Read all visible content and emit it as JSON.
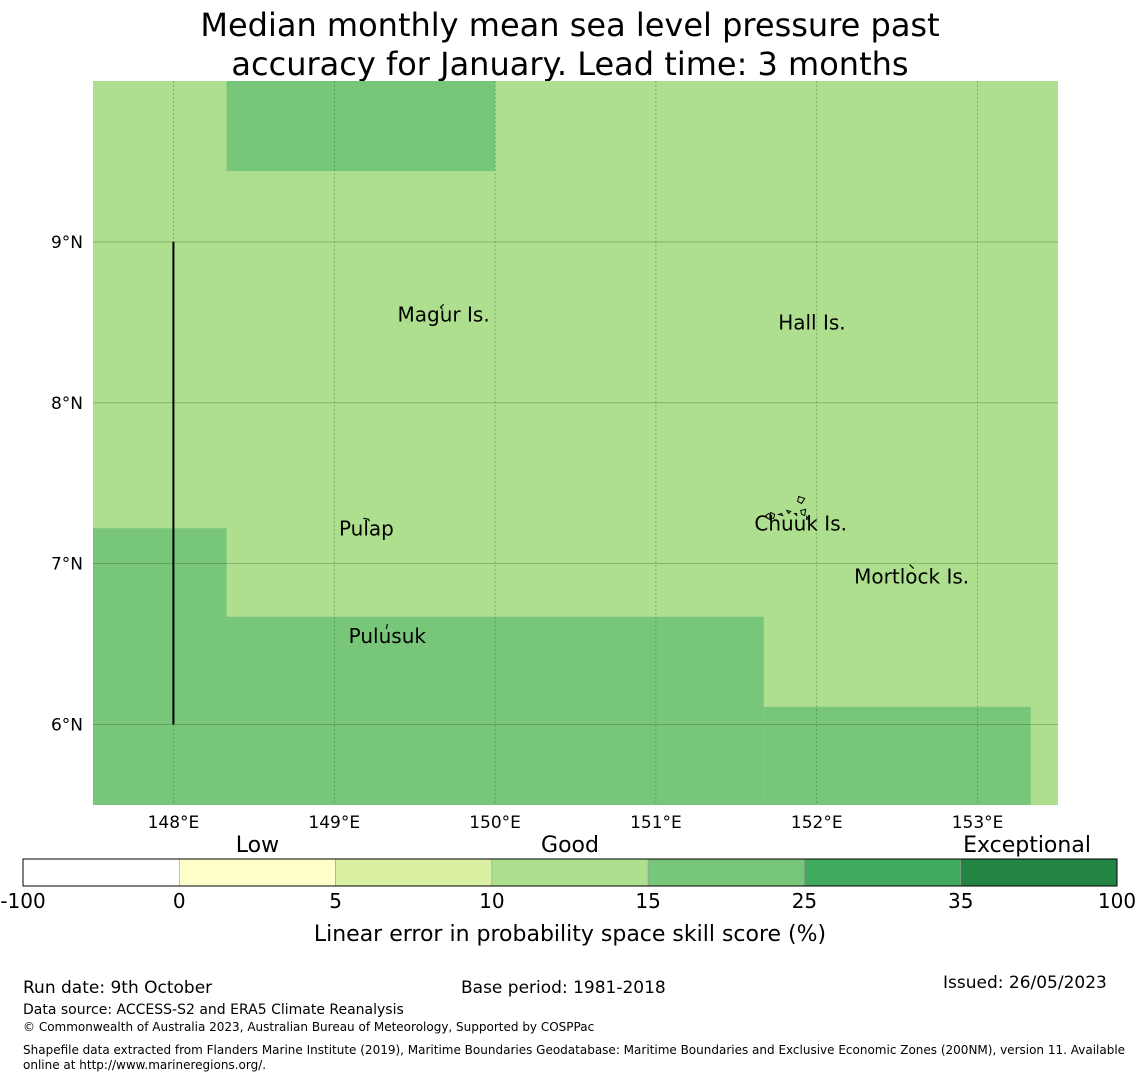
{
  "title": {
    "line1": "Median monthly mean sea level pressure past",
    "line2": "accuracy for January. Lead time: 3 months"
  },
  "map": {
    "lat_labels": [
      "9°N",
      "8°N",
      "7°N",
      "6°N"
    ],
    "lat_values": [
      9,
      8,
      7,
      6
    ],
    "lon_labels": [
      "148°E",
      "149°E",
      "150°E",
      "151°E",
      "152°E",
      "153°E"
    ],
    "lon_values": [
      148,
      149,
      150,
      151,
      152,
      153
    ],
    "extent": {
      "lon_min": 147.5,
      "lon_max": 153.5,
      "lat_min": 5.5,
      "lat_max": 10.0
    },
    "base_color": "#addf8e",
    "cells": [
      {
        "lon0": 148.33,
        "lon1": 150.0,
        "lat0": 9.44,
        "lat1": 10.0,
        "color": "#78c679",
        "category": "15-25"
      },
      {
        "lon0": 147.5,
        "lon1": 148.33,
        "lat0": 5.5,
        "lat1": 7.22,
        "color": "#78c679",
        "category": "15-25"
      },
      {
        "lon0": 148.33,
        "lon1": 151.67,
        "lat0": 5.5,
        "lat1": 6.67,
        "color": "#78c679",
        "category": "15-25"
      },
      {
        "lon0": 151.67,
        "lon1": 153.33,
        "lat0": 5.5,
        "lat1": 6.11,
        "color": "#78c679",
        "category": "15-25"
      }
    ],
    "boundary_line": {
      "lon": 148.0,
      "lat0": 6.0,
      "lat1": 9.0
    },
    "islands": [
      {
        "name": "Magur Is.",
        "lon": 149.68,
        "lat": 8.55
      },
      {
        "name": "Hall Is.",
        "lon": 151.97,
        "lat": 8.5
      },
      {
        "name": "Pulap",
        "lon": 149.2,
        "lat": 7.22
      },
      {
        "name": "Chuuk Is.",
        "lon": 151.9,
        "lat": 7.25
      },
      {
        "name": "Mortlock Is.",
        "lon": 152.59,
        "lat": 6.92
      },
      {
        "name": "Pulusuk",
        "lon": 149.33,
        "lat": 6.55
      }
    ]
  },
  "legend": {
    "category_labels": [
      "Low",
      "Good",
      "Exceptional"
    ],
    "ticks": [
      "-100",
      "0",
      "5",
      "10",
      "15",
      "25",
      "35",
      "100"
    ],
    "colors": [
      "#ffffff",
      "#ffffcc",
      "#d9f0a3",
      "#addf8e",
      "#78c679",
      "#41ab5d",
      "#238443"
    ],
    "xlabel": "Linear error in probability space skill score (%)"
  },
  "footer": {
    "run_date": "Run date: 9th October",
    "base_period": "Base period: 1981-2018",
    "issued": "Issued: 26/05/2023",
    "data_source": "Data source: ACCESS-S2 and ERA5 Climate Reanalysis",
    "copyright": "© Commonwealth of Australia 2023, Australian Bureau of Meteorology, Supported by COSPPac",
    "shapefile_line1": "Shapefile data extracted from Flanders Marine Institute (2019), Maritime Boundaries Geodatabase: Maritime Boundaries and Exclusive Economic Zones (200NM), version 11. Available",
    "shapefile_line2": "online at http://www.marineregions.org/."
  }
}
